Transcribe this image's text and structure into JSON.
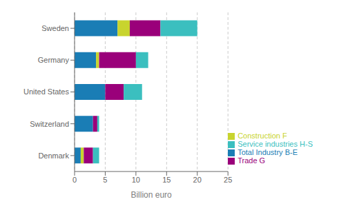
{
  "chart_data": {
    "type": "bar",
    "orientation": "horizontal",
    "stacked": true,
    "categories": [
      "Sweden",
      "Germany",
      "United States",
      "Switzerland",
      "Denmark"
    ],
    "series": [
      {
        "name": "Total Industry B-E",
        "color": "#1a7db5",
        "values": [
          7.0,
          3.5,
          5.0,
          3.0,
          1.0
        ]
      },
      {
        "name": "Construction F",
        "color": "#c8d42e",
        "values": [
          2.0,
          0.5,
          0.0,
          0.0,
          0.5
        ]
      },
      {
        "name": "Trade G",
        "color": "#9a007a",
        "values": [
          5.0,
          6.0,
          3.0,
          0.7,
          1.5
        ]
      },
      {
        "name": "Service industries H-S",
        "color": "#3bbfbf",
        "values": [
          6.0,
          2.0,
          3.0,
          0.3,
          1.0
        ]
      }
    ],
    "xlabel": "Billion euro",
    "xlim": [
      0,
      25
    ],
    "xticks": [
      0,
      5,
      10,
      15,
      20,
      25
    ],
    "grid": true,
    "legend": "lower right"
  }
}
